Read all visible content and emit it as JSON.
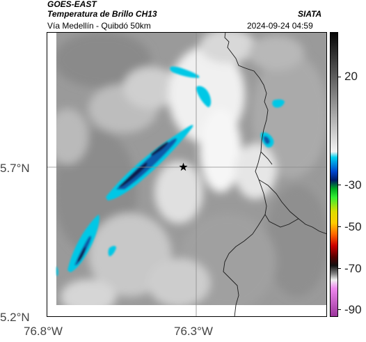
{
  "header": {
    "agency": "GOES-EAST",
    "product": "Temperatura de Brillo CH13",
    "route": "Vía Medellín - Quibdó 50km",
    "source": "SIATA",
    "datetime": "2024-09-24 04:59"
  },
  "map": {
    "lat_ticks": [
      "5.7°N",
      "5.2°N"
    ],
    "lon_ticks": [
      "76.8°W",
      "76.3°W"
    ],
    "marker": "star-icon"
  },
  "colorbar": {
    "ticks": [
      "20",
      "-30",
      "-50",
      "-70",
      "-90"
    ]
  },
  "colors": {
    "cloud_cyan": "#00c8e6",
    "cloud_blue": "#0a5aa8",
    "cloud_navy": "#0b1f4d",
    "border_line": "#1a1a1a"
  }
}
